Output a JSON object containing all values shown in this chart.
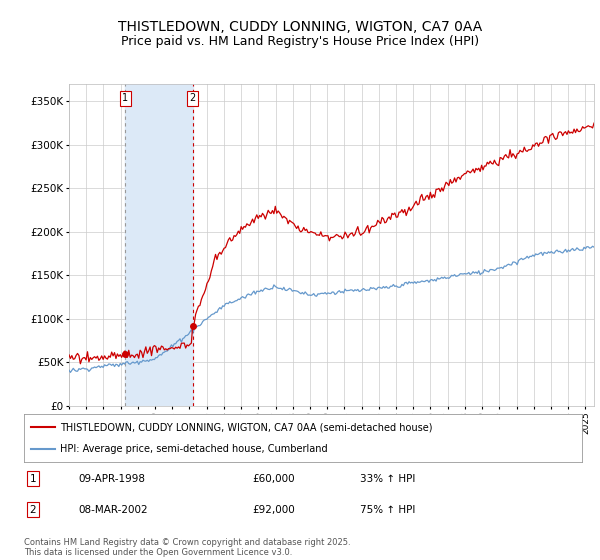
{
  "title": "THISTLEDOWN, CUDDY LONNING, WIGTON, CA7 0AA",
  "subtitle": "Price paid vs. HM Land Registry's House Price Index (HPI)",
  "ylim": [
    0,
    370000
  ],
  "yticks": [
    0,
    50000,
    100000,
    150000,
    200000,
    250000,
    300000,
    350000
  ],
  "ytick_labels": [
    "£0",
    "£50K",
    "£100K",
    "£150K",
    "£200K",
    "£250K",
    "£300K",
    "£350K"
  ],
  "background_color": "#ffffff",
  "plot_bg_color": "#ffffff",
  "grid_color": "#cccccc",
  "transaction1": {
    "date_num": 1998.27,
    "price": 60000,
    "label": "1"
  },
  "transaction2": {
    "date_num": 2002.18,
    "price": 92000,
    "label": "2"
  },
  "shade_color": "#dce9f7",
  "vline1_color": "#aaaaaa",
  "vline2_color": "#cc0000",
  "red_line_color": "#cc0000",
  "blue_line_color": "#6699cc",
  "legend_entries": [
    {
      "label": "THISTLEDOWN, CUDDY LONNING, WIGTON, CA7 0AA (semi-detached house)",
      "color": "#cc0000"
    },
    {
      "label": "HPI: Average price, semi-detached house, Cumberland",
      "color": "#6699cc"
    }
  ],
  "table_entries": [
    {
      "num": "1",
      "date": "09-APR-1998",
      "price": "£60,000",
      "hpi": "33% ↑ HPI"
    },
    {
      "num": "2",
      "date": "08-MAR-2002",
      "price": "£92,000",
      "hpi": "75% ↑ HPI"
    }
  ],
  "footer": "Contains HM Land Registry data © Crown copyright and database right 2025.\nThis data is licensed under the Open Government Licence v3.0.",
  "title_fontsize": 10,
  "subtitle_fontsize": 9
}
